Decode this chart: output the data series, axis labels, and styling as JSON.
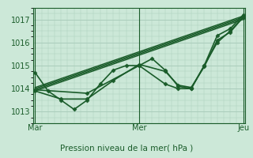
{
  "bg_color": "#cce8d8",
  "grid_color": "#aaccbb",
  "line_color": "#1a5c2a",
  "title": "Pression niveau de la mer( hPa )",
  "xlabel_mar1": "Mar",
  "xlabel_mer": "Mer",
  "xlabel_jeu": "Jeu",
  "ylim": [
    1012.5,
    1017.5
  ],
  "yticks": [
    1013,
    1014,
    1015,
    1016,
    1017
  ],
  "x_mar": 0,
  "x_mer": 48,
  "x_jeu": 96,
  "xlim": [
    -1,
    97
  ],
  "series": [
    {
      "x": [
        0,
        6,
        12,
        18,
        24,
        30,
        36,
        42,
        48,
        54,
        60,
        66,
        72,
        78,
        84,
        90,
        96
      ],
      "y": [
        1014.7,
        1013.9,
        1013.5,
        1013.1,
        1013.5,
        1014.2,
        1014.8,
        1015.0,
        1015.0,
        1015.3,
        1014.8,
        1014.1,
        1014.0,
        1015.0,
        1016.0,
        1016.5,
        1017.1
      ],
      "marker": "D",
      "lw": 1.2,
      "ms": 2.5
    },
    {
      "x": [
        0,
        12,
        24,
        36,
        48,
        60,
        66,
        72,
        78,
        84,
        90,
        96
      ],
      "y": [
        1013.9,
        1013.55,
        1013.55,
        1014.35,
        1015.05,
        1014.75,
        1014.15,
        1014.05,
        1014.95,
        1016.1,
        1016.45,
        1017.1
      ],
      "marker": "D",
      "lw": 1.2,
      "ms": 2.5
    },
    {
      "x": [
        0,
        24,
        48,
        60,
        66,
        72,
        78,
        84,
        90,
        96
      ],
      "y": [
        1013.95,
        1013.8,
        1015.0,
        1014.2,
        1014.0,
        1014.0,
        1015.0,
        1016.3,
        1016.6,
        1017.2
      ],
      "marker": "D",
      "lw": 1.2,
      "ms": 2.5
    },
    {
      "x": [
        0,
        96
      ],
      "y": [
        1013.9,
        1017.0
      ],
      "marker": null,
      "lw": 1.0,
      "ms": 0
    },
    {
      "x": [
        0,
        96
      ],
      "y": [
        1013.95,
        1017.05
      ],
      "marker": null,
      "lw": 1.0,
      "ms": 0
    },
    {
      "x": [
        0,
        96
      ],
      "y": [
        1014.0,
        1017.1
      ],
      "marker": null,
      "lw": 1.0,
      "ms": 0
    },
    {
      "x": [
        0,
        96
      ],
      "y": [
        1014.05,
        1017.15
      ],
      "marker": null,
      "lw": 1.0,
      "ms": 0
    }
  ],
  "figsize": [
    3.2,
    2.0
  ],
  "dpi": 100
}
